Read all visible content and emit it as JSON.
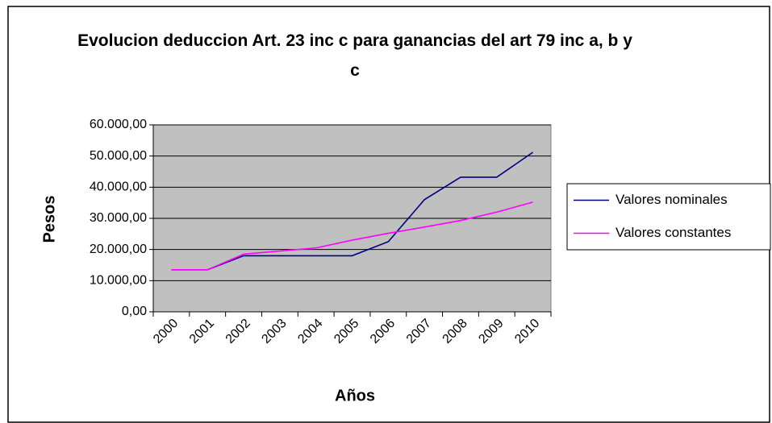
{
  "chart_data": {
    "type": "line",
    "title": "Evolucion deduccion Art. 23 inc c para ganancias del art 79 inc a, b y c",
    "x_label": "Años",
    "y_label": "Pesos",
    "categories": [
      "2000",
      "2001",
      "2002",
      "2003",
      "2004",
      "2005",
      "2006",
      "2007",
      "2008",
      "2009",
      "2010"
    ],
    "series": [
      {
        "name": "Valores nominales",
        "color": "#000080",
        "values": [
          13500,
          13500,
          18000,
          18000,
          18000,
          18000,
          22500,
          36000,
          43200,
          43200,
          51200
        ]
      },
      {
        "name": "Valores constantes",
        "color": "#ff00ff",
        "values": [
          13500,
          13500,
          18500,
          19500,
          20500,
          23000,
          25200,
          27200,
          29300,
          32000,
          35200
        ]
      }
    ],
    "ylim": [
      0,
      60000
    ],
    "yticks": [
      {
        "value": 0,
        "label": "0,00"
      },
      {
        "value": 10000,
        "label": "10.000,00"
      },
      {
        "value": 20000,
        "label": "20.000,00"
      },
      {
        "value": 30000,
        "label": "30.000,00"
      },
      {
        "value": 40000,
        "label": "40.000,00"
      },
      {
        "value": 50000,
        "label": "50.000,00"
      },
      {
        "value": 60000,
        "label": "60.000,00"
      }
    ],
    "grid": true,
    "legend": "right",
    "plot_background": "#c0c0c0"
  }
}
